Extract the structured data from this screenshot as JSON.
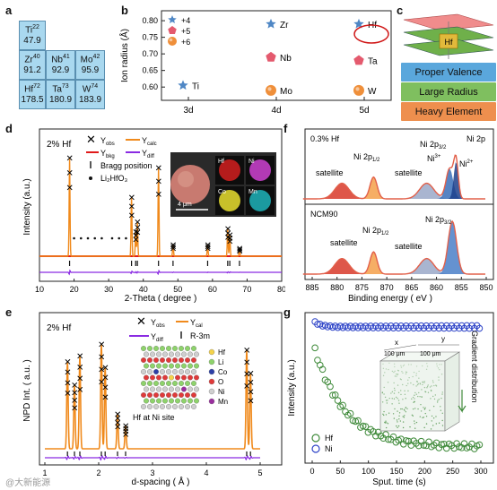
{
  "panels": {
    "a": "a",
    "b": "b",
    "c": "c",
    "d": "d",
    "e": "e",
    "f": "f",
    "g": "g"
  },
  "periodic": [
    {
      "sym": "Ti",
      "num": "22",
      "val": "47.9"
    },
    {
      "sym": "Zr",
      "num": "40",
      "val": "91.2"
    },
    {
      "sym": "Nb",
      "num": "41",
      "val": "92.9"
    },
    {
      "sym": "Mo",
      "num": "42",
      "val": "95.9"
    },
    {
      "sym": "Hf",
      "num": "72",
      "val": "178.5"
    },
    {
      "sym": "Ta",
      "num": "73",
      "val": "180.9"
    },
    {
      "sym": "W",
      "num": "74",
      "val": "183.9"
    }
  ],
  "panel_b": {
    "ylabel": "Ion radius (Å)",
    "yticks": [
      "0.80",
      "0.75",
      "0.70",
      "0.65",
      "0.60"
    ],
    "xticks": [
      "3d",
      "4d",
      "5d"
    ],
    "legend": [
      "+4",
      "+5",
      "+6"
    ],
    "points": [
      {
        "el": "Ti",
        "period": "3d",
        "radius": 0.605,
        "shape": "star"
      },
      {
        "el": "Zr",
        "period": "4d",
        "radius": 0.79,
        "shape": "star"
      },
      {
        "el": "Hf",
        "period": "5d",
        "radius": 0.79,
        "shape": "star"
      },
      {
        "el": "Nb",
        "period": "4d",
        "radius": 0.69,
        "shape": "pentagon"
      },
      {
        "el": "Ta",
        "period": "5d",
        "radius": 0.68,
        "shape": "pentagon"
      },
      {
        "el": "Mo",
        "period": "4d",
        "radius": 0.59,
        "shape": "circle"
      },
      {
        "el": "W",
        "period": "5d",
        "radius": 0.59,
        "shape": "circle"
      }
    ],
    "colors": {
      "star": "#4f87c5",
      "pentagon": "#e45a6e",
      "circle": "#ef8f3a"
    }
  },
  "panel_c": {
    "labels": [
      "Proper Valence",
      "Large Radius",
      "Heavy Element"
    ],
    "colors": [
      "#5aa7dc",
      "#7fbf5f",
      "#ee8f4e"
    ],
    "center": "Hf"
  },
  "panel_d": {
    "title": "2% Hf",
    "ylabel": "Intensity (a.u.)",
    "xlabel": "2-Theta ( degree )",
    "xticks": [
      "10",
      "20",
      "30",
      "40",
      "50",
      "60",
      "70",
      "80"
    ],
    "legend": {
      "obs": "Y",
      "obs_sub": "obs",
      "calc": "Y",
      "calc_sub": "calc",
      "bkg": "Y",
      "bkg_sub": "bkg",
      "diff": "Y",
      "diff_sub": "diff",
      "bragg": "Bragg position",
      "imp": "Li₂HfO₃"
    },
    "inset": {
      "scale": "4 μm",
      "maps": [
        "Hf",
        "Ni",
        "Co",
        "Mn"
      ]
    }
  },
  "panel_e": {
    "title": "2% Hf",
    "ylabel": "NPD Int. ( a.u. )",
    "xlabel": "d-spacing ( Å )",
    "xticks": [
      "1",
      "2",
      "3",
      "4",
      "5"
    ],
    "legend": {
      "obs": "Y",
      "obs_sub": "obs",
      "cal": "Y",
      "cal_sub": "cal",
      "diff": "Y",
      "diff_sub": "diff",
      "bragg": "R-3m"
    },
    "atoms": [
      "Hf",
      "Li",
      "Co",
      "O",
      "Ni",
      "Mn"
    ],
    "atom_colors": [
      "#f5d34a",
      "#8ed36b",
      "#2c3fa7",
      "#e03a3a",
      "#cfcfcf",
      "#9a2e9e"
    ],
    "caption": "Hf at Ni site"
  },
  "panel_f": {
    "xlabel": "Binding energy ( eV )",
    "xticks": [
      "885",
      "880",
      "875",
      "870",
      "865",
      "860",
      "855",
      "850"
    ],
    "top": {
      "title": "0.3% Hf",
      "right": "Ni 2p",
      "peaks": [
        "satellite",
        "Ni 2p",
        "satellite",
        "Ni 2p",
        "Ni",
        "Ni"
      ]
    },
    "bottom": {
      "title": "NCM90",
      "peaks": [
        "satellite",
        "Ni 2p",
        "satellite",
        "Ni 2p"
      ]
    },
    "subs": {
      "half": "1/2",
      "three_half": "3/2",
      "ni3": "3+",
      "ni2": "2+"
    }
  },
  "panel_g": {
    "ylabel": "Intensity (a.u.)",
    "xlabel": "Sput. time (s)",
    "xticks": [
      "0",
      "50",
      "100",
      "150",
      "200",
      "250",
      "300"
    ],
    "legend": [
      "Hf",
      "Ni"
    ],
    "side": "Gradient distribution",
    "cube": {
      "x": "x",
      "y": "y",
      "x_size": "100 μm",
      "y_size": "100 μm"
    },
    "hf_color": "#3f8a3a",
    "ni_color": "#2f45c8"
  },
  "watermark": "@大新能源"
}
